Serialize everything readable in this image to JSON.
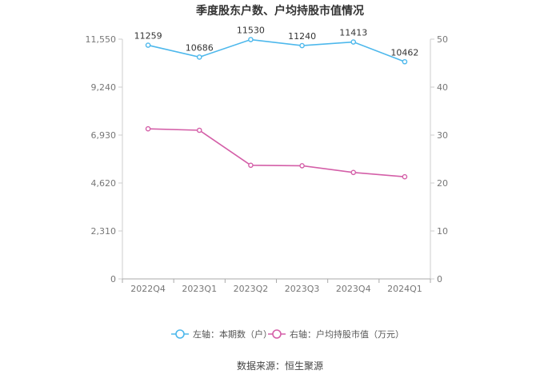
{
  "chart_data": {
    "type": "line",
    "title": "季度股东户数、户均持股市值情况",
    "categories": [
      "2022Q4",
      "2023Q1",
      "2023Q2",
      "2023Q3",
      "2023Q4",
      "2024Q1"
    ],
    "left_axis": {
      "ticks": [
        "0",
        "2,310",
        "4,620",
        "6,930",
        "9,240",
        "11,550"
      ],
      "ylim": [
        0,
        11550
      ]
    },
    "right_axis": {
      "ticks": [
        "0",
        "10",
        "20",
        "30",
        "40",
        "50"
      ],
      "ylim": [
        0,
        50
      ]
    },
    "series": [
      {
        "name": "左轴：本期数（户）",
        "axis": "left",
        "color": "#4db8ec",
        "values": [
          11259,
          10686,
          11530,
          11240,
          11413,
          10462
        ],
        "labels": [
          "11259",
          "10686",
          "11530",
          "11240",
          "11413",
          "10462"
        ]
      },
      {
        "name": "右轴：户均持股市值（万元）",
        "axis": "right",
        "color": "#d45fa8",
        "values": [
          31.3,
          31.0,
          23.7,
          23.6,
          22.2,
          21.3
        ]
      }
    ],
    "legend_position": "bottom",
    "grid": false
  },
  "source": "数据来源：恒生聚源"
}
